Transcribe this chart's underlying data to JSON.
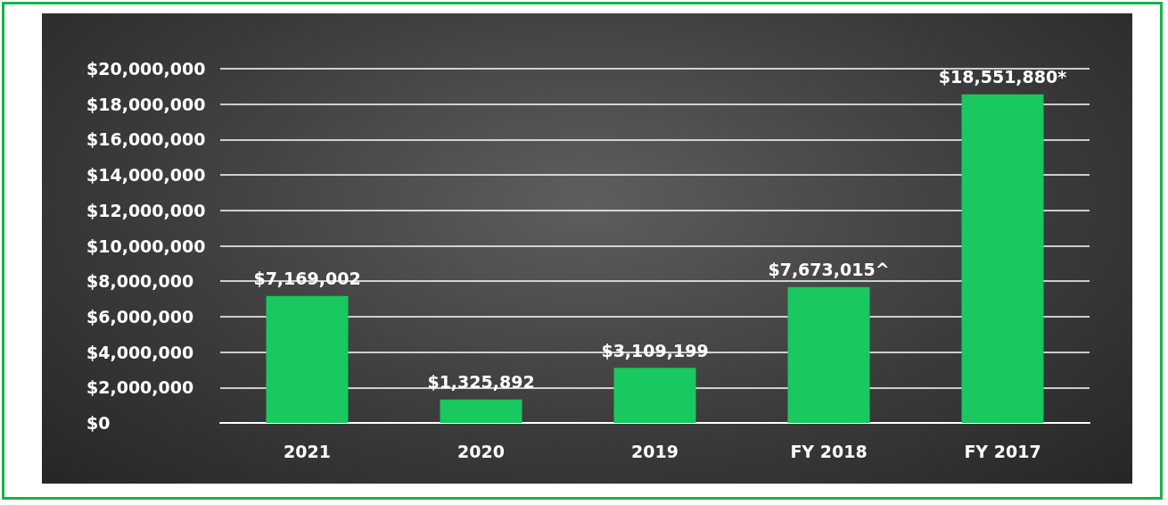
{
  "chart_data": {
    "type": "bar",
    "categories": [
      "2021",
      "2020",
      "2019",
      "FY 2018",
      "FY 2017"
    ],
    "values": [
      7169002,
      1325892,
      3109199,
      7673015,
      18551880
    ],
    "value_labels": [
      "$7,169,002",
      "$1,325,892",
      "$3,109,199",
      "$7,673,015^",
      "$18,551,880*"
    ],
    "color": "#19c85e",
    "ylim": [
      0,
      20000000
    ],
    "yticks": [
      {
        "value": 0,
        "label": "$0"
      },
      {
        "value": 2000000,
        "label": "$2,000,000"
      },
      {
        "value": 4000000,
        "label": "$4,000,000"
      },
      {
        "value": 6000000,
        "label": "$6,000,000"
      },
      {
        "value": 8000000,
        "label": "$8,000,000"
      },
      {
        "value": 10000000,
        "label": "$10,000,000"
      },
      {
        "value": 12000000,
        "label": "$12,000,000"
      },
      {
        "value": 14000000,
        "label": "$14,000,000"
      },
      {
        "value": 16000000,
        "label": "$16,000,000"
      },
      {
        "value": 18000000,
        "label": "$18,000,000"
      },
      {
        "value": 20000000,
        "label": "$20,000,000"
      }
    ],
    "grid": true
  }
}
